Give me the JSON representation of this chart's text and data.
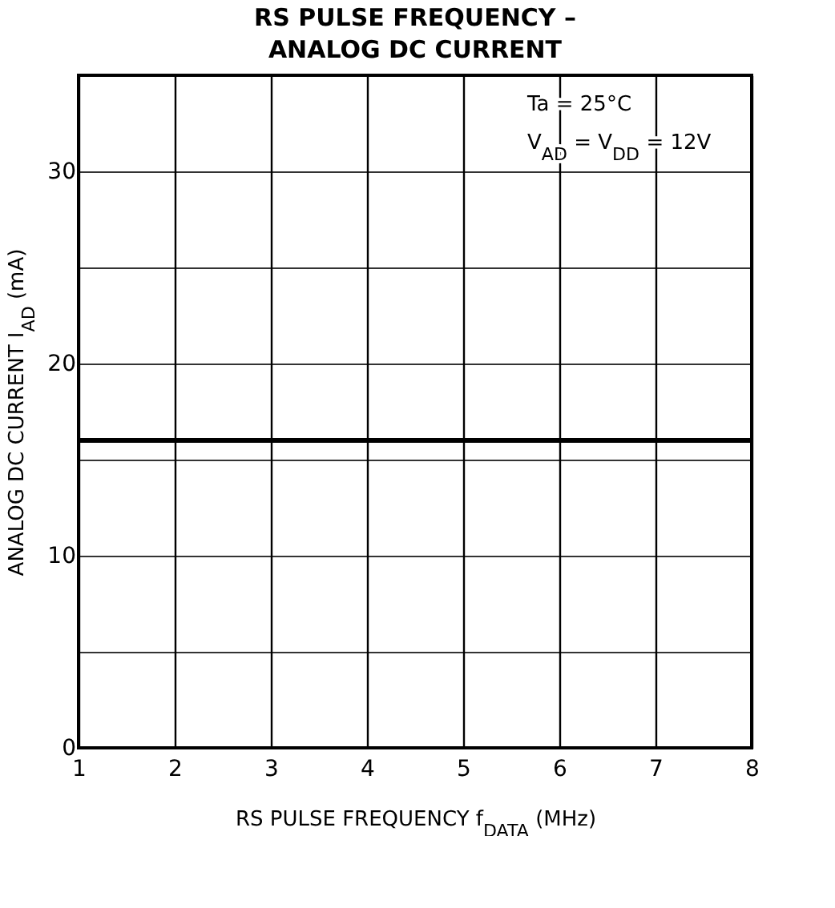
{
  "chart_data": {
    "type": "line",
    "title": "RS PULSE FREQUENCY –\nANALOG DC CURRENT",
    "xlabel": "RS PULSE FREQUENCY  f$_{DATA}$  (MHz)",
    "ylabel": "ANALOG DC CURRENT I$_{AD}$  (mA)",
    "annotations": [
      "Ta = 25°C",
      "V$_{AD}$ = V$_{DD}$ = 12V"
    ],
    "x": [
      1,
      8
    ],
    "series": [
      {
        "color": "#000000",
        "values": [
          16,
          16
        ]
      }
    ],
    "xlim": [
      1,
      8
    ],
    "xticks": [
      1,
      2,
      3,
      4,
      5,
      6,
      7,
      8
    ],
    "ylim": [
      0,
      35
    ],
    "yticks": [
      0,
      {
        "value": 5,
        "label": null
      },
      10,
      {
        "value": 15,
        "label": null
      },
      20,
      {
        "value": 25,
        "label": null
      },
      30,
      {
        "value": 35,
        "label": null
      }
    ],
    "grid": true,
    "marker": "none",
    "line_style": "solid"
  }
}
